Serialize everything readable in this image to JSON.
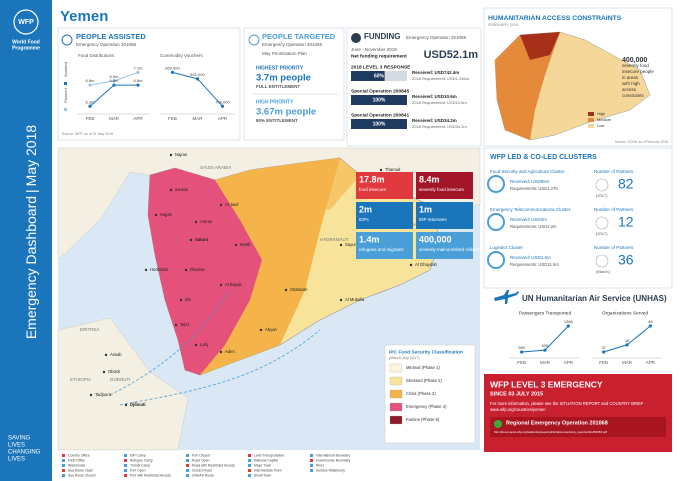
{
  "sidebar": {
    "logo": "WFP",
    "org": [
      "World Food",
      "Programme"
    ],
    "title": "Emergency Dashboard",
    "separator": "|",
    "date": "May 2018",
    "tagline": [
      "SAVING",
      "LIVES",
      "CHANGING",
      "LIVES"
    ]
  },
  "header": {
    "title": "Yemen"
  },
  "people_assisted": {
    "title": "PEOPLE ASSISTED",
    "subtitle": "Emergency Operation 201068",
    "food": {
      "title": "Food Distributions",
      "categories": [
        "FEB",
        "MAR",
        "APR"
      ],
      "series": [
        {
          "name": "Planned",
          "color": "#9cc3e8",
          "values": [
            6.8,
            6.9,
            7.1
          ],
          "value_labels": [
            "6.8m",
            "6.9m",
            "7.1m"
          ]
        },
        {
          "name": "Assisted",
          "color": "#1a75bb",
          "values": [
            6.3,
            6.8,
            6.8
          ],
          "value_labels": [
            "6.3m",
            "6.8m",
            "6.8m"
          ]
        }
      ]
    },
    "vouchers": {
      "title": "Commodity Vouchers",
      "categories": [
        "FEB",
        "MAR",
        "APR"
      ],
      "series": [
        {
          "color": "#1a75bb",
          "values": [
            860000,
            831000,
            708000
          ],
          "value_labels": [
            "860,000",
            "831,000",
            "708,000"
          ]
        }
      ]
    },
    "source": "Source: WFP, as of 31 May 2018"
  },
  "people_targeted": {
    "title": "PEOPLE TARGETED",
    "subtitle": "Emergency Operation 201068",
    "plan": "May Prioritisation Plan",
    "groups": [
      {
        "priority": "HIGHEST PRIORITY",
        "people": "3.7m people",
        "entitlement": "FULL ENTITLEMENT"
      },
      {
        "priority": "HIGH PRIORITY",
        "people": "3.67m people",
        "entitlement": "80% ENTITLEMENT"
      }
    ]
  },
  "funding": {
    "title": "FUNDING",
    "subtitle": "Emergency Operation 201068",
    "period": "June - November 2018",
    "net_label": "Net funding requirement",
    "net": "USD52.1m",
    "xlim": [
      0,
      100
    ],
    "items": [
      {
        "name": "2018 LEVEL 3 RESPONSE",
        "value": 60,
        "value_label": "60%",
        "received": "Received: USD742.4m",
        "requirement": "2018 Requirement: USD1,246m"
      },
      {
        "name": "Special Operation 200845",
        "value": 100,
        "value_label": "100%",
        "received": "Received: USD10.6m",
        "requirement": "2018 Requirement: USD10.6m"
      },
      {
        "name": "Special Operation 200841",
        "value": 100,
        "value_label": "100%",
        "received": "Received: USD34.2m",
        "requirement": "2018 Requirement: USD34.2m"
      }
    ]
  },
  "access": {
    "title": "HUMANITARIAN ACCESS CONSTRAINTS",
    "subtitle": "FEBRUARY 2018",
    "callout": [
      "400,000",
      "severely food",
      "insecure people",
      "in areas",
      "with high",
      "access",
      "constraints"
    ],
    "legend": [
      {
        "name": "High",
        "color": "#a6301a"
      },
      {
        "name": "Medium",
        "color": "#e58a3a"
      },
      {
        "name": "Low",
        "color": "#f6d79a"
      }
    ],
    "source": "Source: OCHA, as of February 2018"
  },
  "map": {
    "stats": [
      {
        "value": "17.8m",
        "label": "food insecure",
        "color": "#e03a3e"
      },
      {
        "value": "8.4m",
        "label": "severely food insecure",
        "color": "#a3162a"
      },
      {
        "value": "2m",
        "label": "IDPs",
        "color": "#1a75bb"
      },
      {
        "value": "1m",
        "label": "IDP returnees",
        "color": "#1a75bb"
      },
      {
        "value": "1.4m",
        "label": "refugees and migrants",
        "color": "#4a9fd8"
      },
      {
        "value": "400,000",
        "label": "severely malnourished children",
        "color": "#4a9fd8"
      }
    ],
    "places": [
      "Najran",
      "SAUDI ARABIA",
      "Sa'ada",
      "Al Jawf",
      "Hajjah",
      "Amran",
      "Sana'a",
      "Marib",
      "Hodeidah",
      "Dhamar",
      "Al Bayda",
      "Ibb",
      "Taizz",
      "Lahj",
      "Aden",
      "Abyan",
      "Shabwah",
      "HADRAMAUT",
      "AL MAHRAH",
      "Thamud",
      "Sayun",
      "Al Mukalla",
      "Al Ghaydah",
      "ERITREA",
      "Assab",
      "DJIBOUTI",
      "Djibouti",
      "ETHIOPIA",
      "Obock",
      "Tadjoura"
    ],
    "ipc": {
      "title": "IPC Food Security Classification",
      "subtitle": "(March-July 2017)",
      "classes": [
        {
          "name": "Minimal (Phase 1)",
          "color": "#fdf6d9"
        },
        {
          "name": "Stressed (Phase 2)",
          "color": "#f7e39a"
        },
        {
          "name": "Crisis (Phase 3)",
          "color": "#f4b44a"
        },
        {
          "name": "Emergency (Phase 4)",
          "color": "#e4517a"
        },
        {
          "name": "Famine (Phase 5)",
          "color": "#8b1a2b"
        }
      ]
    },
    "legend": [
      "Country Office",
      "Field Office",
      "Warehouse",
      "Sea Route Open",
      "Sea Route Closed",
      "IDP Camp",
      "Refugee Camp",
      "Transit Camp",
      "Port Open",
      "Port with Restricted Access",
      "Port Closed",
      "Road Open",
      "Road with Restricted Access",
      "Closed Road",
      "UNHAS Route",
      "Land Transportation",
      "National Capital",
      "Major Town",
      "Intermediate Town",
      "Small Town",
      "International Boundary",
      "Governorate Boundary",
      "River",
      "Surface Waterbody"
    ]
  },
  "clusters": {
    "title": "WFP LED & CO-LED CLUSTERS",
    "partners_label": "Number of Partners",
    "items": [
      {
        "name": "Food Security and Agriculture Cluster",
        "received": "Received: USD95m",
        "requirement": "Requirements: USD1.27b",
        "partners": 82,
        "note": "(2017)"
      },
      {
        "name": "Emergency Telecommunications Cluster",
        "received": "Received: USD2m",
        "requirement": "Requirements: USD2.2m",
        "partners": 12,
        "note": "(2017)"
      },
      {
        "name": "Logistics Cluster",
        "received": "Received: USD1.5m",
        "requirement": "Requirements: USD31.5m",
        "partners": 36,
        "note": "(March)"
      }
    ]
  },
  "unhas": {
    "title": "UN Humanitarian Air Service (UNHAS)",
    "passengers": {
      "title": "Passengers Transported",
      "categories": [
        "FEB",
        "MAR",
        "APR"
      ],
      "series": [
        {
          "color": "#1a75bb",
          "values": [
            580,
            636,
            1366
          ]
        }
      ]
    },
    "organizations": {
      "title": "Organizations Served",
      "categories": [
        "FEB",
        "MAR",
        "APR"
      ],
      "series": [
        {
          "color": "#1a75bb",
          "values": [
            37,
            40,
            48
          ]
        }
      ]
    }
  },
  "emergency": {
    "title": "WFP LEVEL 3 EMERGENCY",
    "since": "SINCE 03 JULY 2015",
    "info": "For more information, please see the SITUATION REPORT and COUNTRY BRIEF",
    "link": "www.wfp.org/countries/yemen",
    "operation": "Regional Emergency Operation 201068",
    "operation_link": "http://documents.wfp.org/stellent/groups/public/documents/op_reports/wfp284353.pdf"
  }
}
